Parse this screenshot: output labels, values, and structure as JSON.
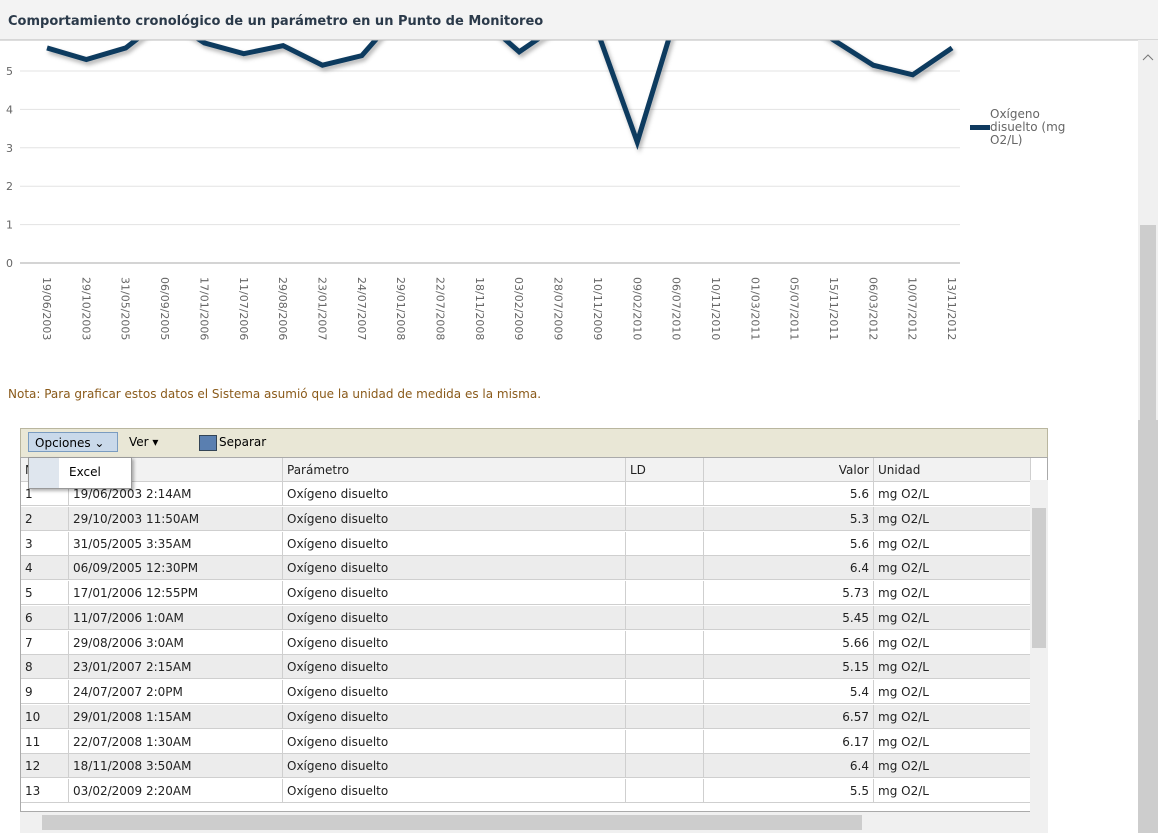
{
  "header": {
    "title": "Comportamiento cronológico de un parámetro en un Punto de Monitoreo"
  },
  "chart": {
    "type": "line",
    "categories": [
      "19/06/2003",
      "29/10/2003",
      "31/05/2005",
      "06/09/2005",
      "17/01/2006",
      "11/07/2006",
      "29/08/2006",
      "23/01/2007",
      "24/07/2007",
      "29/01/2008",
      "22/07/2008",
      "18/11/2008",
      "03/02/2009",
      "28/07/2009",
      "10/11/2009",
      "09/02/2010",
      "06/07/2010",
      "10/11/2010",
      "01/03/2011",
      "05/07/2011",
      "15/11/2011",
      "06/03/2012",
      "10/07/2012",
      "13/11/2012"
    ],
    "series": [
      {
        "name": "Oxígeno disuelto (mg O2/L)",
        "color": "#0f3a5f",
        "values": [
          5.6,
          5.3,
          5.6,
          6.4,
          5.73,
          5.45,
          5.66,
          5.15,
          5.4,
          6.57,
          6.17,
          6.4,
          5.5,
          6.2,
          6.0,
          3.15,
          6.5,
          6.5,
          6.5,
          6.5,
          5.8,
          5.15,
          4.9,
          5.6
        ]
      }
    ],
    "ylim": [
      0,
      6
    ],
    "yticks": [
      0,
      1,
      2,
      3,
      4,
      5
    ],
    "grid": true
  },
  "note": "Nota: Para graficar estos datos el Sistema asumió que la unidad de medida es la misma.",
  "toolbar": {
    "options": "Opciones",
    "view": "Ver",
    "detach": "Separar"
  },
  "menu": {
    "items": [
      "Excel"
    ]
  },
  "table": {
    "columns": [
      "N",
      "Muestra",
      "Parámetro",
      "LD",
      "Valor",
      "Unidad"
    ],
    "rows": [
      [
        1,
        "19/06/2003 2:14AM",
        "Oxígeno disuelto",
        5.6,
        "mg O2/L"
      ],
      [
        2,
        "29/10/2003 11:50AM",
        "Oxígeno disuelto",
        5.3,
        "mg O2/L"
      ],
      [
        3,
        "31/05/2005 3:35AM",
        "Oxígeno disuelto",
        5.6,
        "mg O2/L"
      ],
      [
        4,
        "06/09/2005 12:30PM",
        "Oxígeno disuelto",
        6.4,
        "mg O2/L"
      ],
      [
        5,
        "17/01/2006 12:55PM",
        "Oxígeno disuelto",
        5.73,
        "mg O2/L"
      ],
      [
        6,
        "11/07/2006 1:0AM",
        "Oxígeno disuelto",
        5.45,
        "mg O2/L"
      ],
      [
        7,
        "29/08/2006 3:0AM",
        "Oxígeno disuelto",
        5.66,
        "mg O2/L"
      ],
      [
        8,
        "23/01/2007 2:15AM",
        "Oxígeno disuelto",
        5.15,
        "mg O2/L"
      ],
      [
        9,
        "24/07/2007 2:0PM",
        "Oxígeno disuelto",
        5.4,
        "mg O2/L"
      ],
      [
        10,
        "29/01/2008 1:15AM",
        "Oxígeno disuelto",
        6.57,
        "mg O2/L"
      ],
      [
        11,
        "22/07/2008 1:30AM",
        "Oxígeno disuelto",
        6.17,
        "mg O2/L"
      ],
      [
        12,
        "18/11/2008 3:50AM",
        "Oxígeno disuelto",
        6.4,
        "mg O2/L"
      ],
      [
        13,
        "03/02/2009 2:20AM",
        "Oxígeno disuelto",
        5.5,
        "mg O2/L"
      ]
    ]
  }
}
